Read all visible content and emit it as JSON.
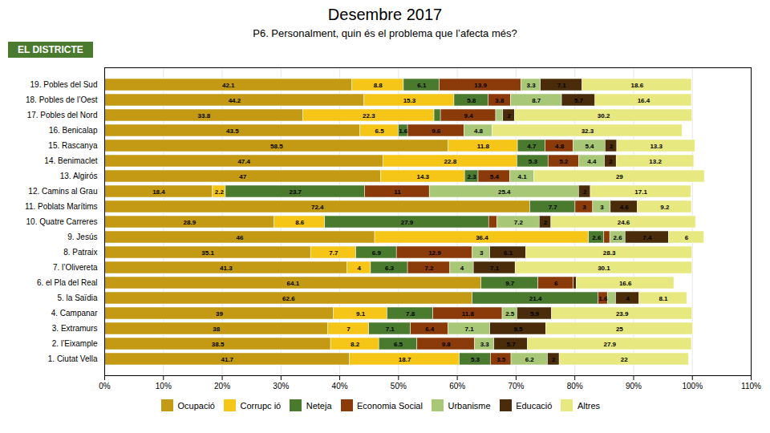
{
  "chart_data": {
    "type": "bar",
    "orientation": "horizontal",
    "stacked": true,
    "title": "Desembre 2017",
    "subtitle": "P6. Personalment, quin és el problema que l’afecta més?",
    "annotations": [
      {
        "text": "EL DISTRICTE",
        "color": "#4A7A2E"
      }
    ],
    "categories": [
      "19. Pobles del Sud",
      "18. Pobles de l’Oest",
      "17. Pobles del Nord",
      "16. Benicalap",
      "15. Rascanya",
      "14. Benimaclet",
      "13. Algirós",
      "12. Camins al Grau",
      "11. Poblats Marítims",
      "10. Quatre Carreres",
      "9. Jesús",
      "8. Patraix",
      "7. l’Olivereta",
      "6. el Pla del Real",
      "5. la Saïdia",
      "4. Campanar",
      "3. Extramurs",
      "2. l’Eixample",
      "1. Ciutat Vella"
    ],
    "series": [
      {
        "name": "Ocupació",
        "color": "#C49A14",
        "values": [
          42.1,
          44.2,
          33.8,
          43.5,
          58.5,
          47.4,
          47.0,
          18.4,
          72.4,
          28.9,
          46.0,
          35.1,
          41.3,
          64.1,
          62.6,
          39.0,
          38.0,
          38.5,
          41.7
        ],
        "value_labels": [
          "42.1",
          "44.2",
          "33.8",
          "43.5",
          "58.5",
          "47.4",
          "47",
          "18.4",
          "72.4",
          "28.9",
          "46",
          "35.1",
          "41.3",
          "64.1",
          "62.6",
          "39",
          "38",
          "38.5",
          "41.7"
        ]
      },
      {
        "name": "Corrupc ió",
        "color": "#F5C518",
        "values": [
          8.8,
          15.3,
          22.3,
          6.5,
          11.8,
          22.8,
          14.3,
          2.2,
          0.0,
          8.6,
          36.4,
          7.7,
          4.0,
          0.0,
          0.0,
          9.1,
          7.0,
          8.2,
          18.7
        ],
        "value_labels": [
          "8.8",
          "15.3",
          "22.3",
          "6.5",
          "11.8",
          "22.8",
          "14.3",
          "2.2",
          null,
          "8.6",
          "36.4",
          "7.7",
          "4",
          null,
          null,
          "9.1",
          "7",
          "8.2",
          "18.7"
        ]
      },
      {
        "name": "Neteja",
        "color": "#4A7A2E",
        "values": [
          6.1,
          5.8,
          1.1,
          1.6,
          4.7,
          5.3,
          2.3,
          23.7,
          7.7,
          27.9,
          2.6,
          6.9,
          6.3,
          9.7,
          21.4,
          7.8,
          7.1,
          6.5,
          5.3
        ],
        "value_labels": [
          "6.1",
          "5.8",
          null,
          "1.6",
          "4.7",
          "5.3",
          "2.3",
          "23.7",
          "7.7",
          "27.9",
          "2.6",
          "6.9",
          "6.3",
          "9.7",
          "21.4",
          "7.8",
          "7.1",
          "6.5",
          "5.3"
        ]
      },
      {
        "name": "Economia Social",
        "color": "#8B3A0A",
        "values": [
          13.9,
          3.8,
          9.4,
          9.6,
          4.8,
          5.2,
          5.4,
          11.0,
          3.0,
          1.4,
          1.0,
          12.9,
          7.2,
          6.0,
          1.6,
          11.8,
          6.4,
          9.8,
          3.5
        ],
        "value_labels": [
          "13.9",
          "3.8",
          "9.4",
          "9.6",
          "4.8",
          "5.2",
          "5.4",
          "11",
          "3",
          null,
          null,
          "12.9",
          "7.2",
          "6",
          "1.6",
          "11.8",
          "6.4",
          "9.8",
          "3.5"
        ]
      },
      {
        "name": "Urbanisme",
        "color": "#A8C878",
        "values": [
          3.3,
          8.7,
          1.2,
          4.8,
          5.4,
          4.4,
          4.1,
          25.4,
          3.0,
          7.2,
          2.6,
          3.0,
          4.0,
          0.0,
          1.4,
          2.5,
          7.1,
          3.3,
          6.2
        ],
        "value_labels": [
          "3.3",
          "8.7",
          null,
          "4.8",
          "5.4",
          "4.4",
          "4.1",
          "25.4",
          "3",
          "7.2",
          "2.6",
          "3",
          "4",
          null,
          null,
          "2.5",
          "7.1",
          "3.3",
          "6.2"
        ]
      },
      {
        "name": "Educació",
        "color": "#4A2C0A",
        "values": [
          7.1,
          5.7,
          2.0,
          0.0,
          2.0,
          2.0,
          0.0,
          2.0,
          4.6,
          2.0,
          7.4,
          6.1,
          7.1,
          0.5,
          4.0,
          5.9,
          9.5,
          5.7,
          2.0
        ],
        "value_labels": [
          "7.1",
          "5.7",
          "2",
          null,
          "2",
          "2",
          null,
          "2",
          "4.6",
          "2",
          "7.4",
          "6.1",
          "7.1",
          null,
          "4",
          "5.9",
          "9.5",
          "5.7",
          "2"
        ]
      },
      {
        "name": "Altres",
        "color": "#E8E880",
        "values": [
          18.6,
          16.4,
          30.2,
          32.3,
          13.3,
          13.2,
          29.0,
          17.1,
          9.2,
          24.6,
          6.0,
          28.3,
          30.1,
          16.6,
          8.1,
          23.9,
          25.0,
          27.9,
          22.0
        ],
        "value_labels": [
          "18.6",
          "16.4",
          "30.2",
          "32.3",
          "13.3",
          "13.2",
          "29",
          "17.1",
          "9.2",
          "24.6",
          "6",
          "28.3",
          "30.1",
          "16.6",
          "8.1",
          "23.9",
          "25",
          "27.9",
          "22"
        ]
      }
    ],
    "xlim": [
      0,
      110
    ],
    "xticks": [
      {
        "value": 0,
        "label": "0%"
      },
      {
        "value": 10,
        "label": "10%"
      },
      {
        "value": 20,
        "label": "20%"
      },
      {
        "value": 30,
        "label": "30%"
      },
      {
        "value": 40,
        "label": "40%"
      },
      {
        "value": 50,
        "label": "50%"
      },
      {
        "value": 60,
        "label": "60%"
      },
      {
        "value": 70,
        "label": "70%"
      },
      {
        "value": 80,
        "label": "80%"
      },
      {
        "value": 90,
        "label": "90%"
      },
      {
        "value": 100,
        "label": "100%"
      },
      {
        "value": 110,
        "label": "110%"
      }
    ],
    "grid": true,
    "data_labels": true,
    "legend": "bottom"
  }
}
